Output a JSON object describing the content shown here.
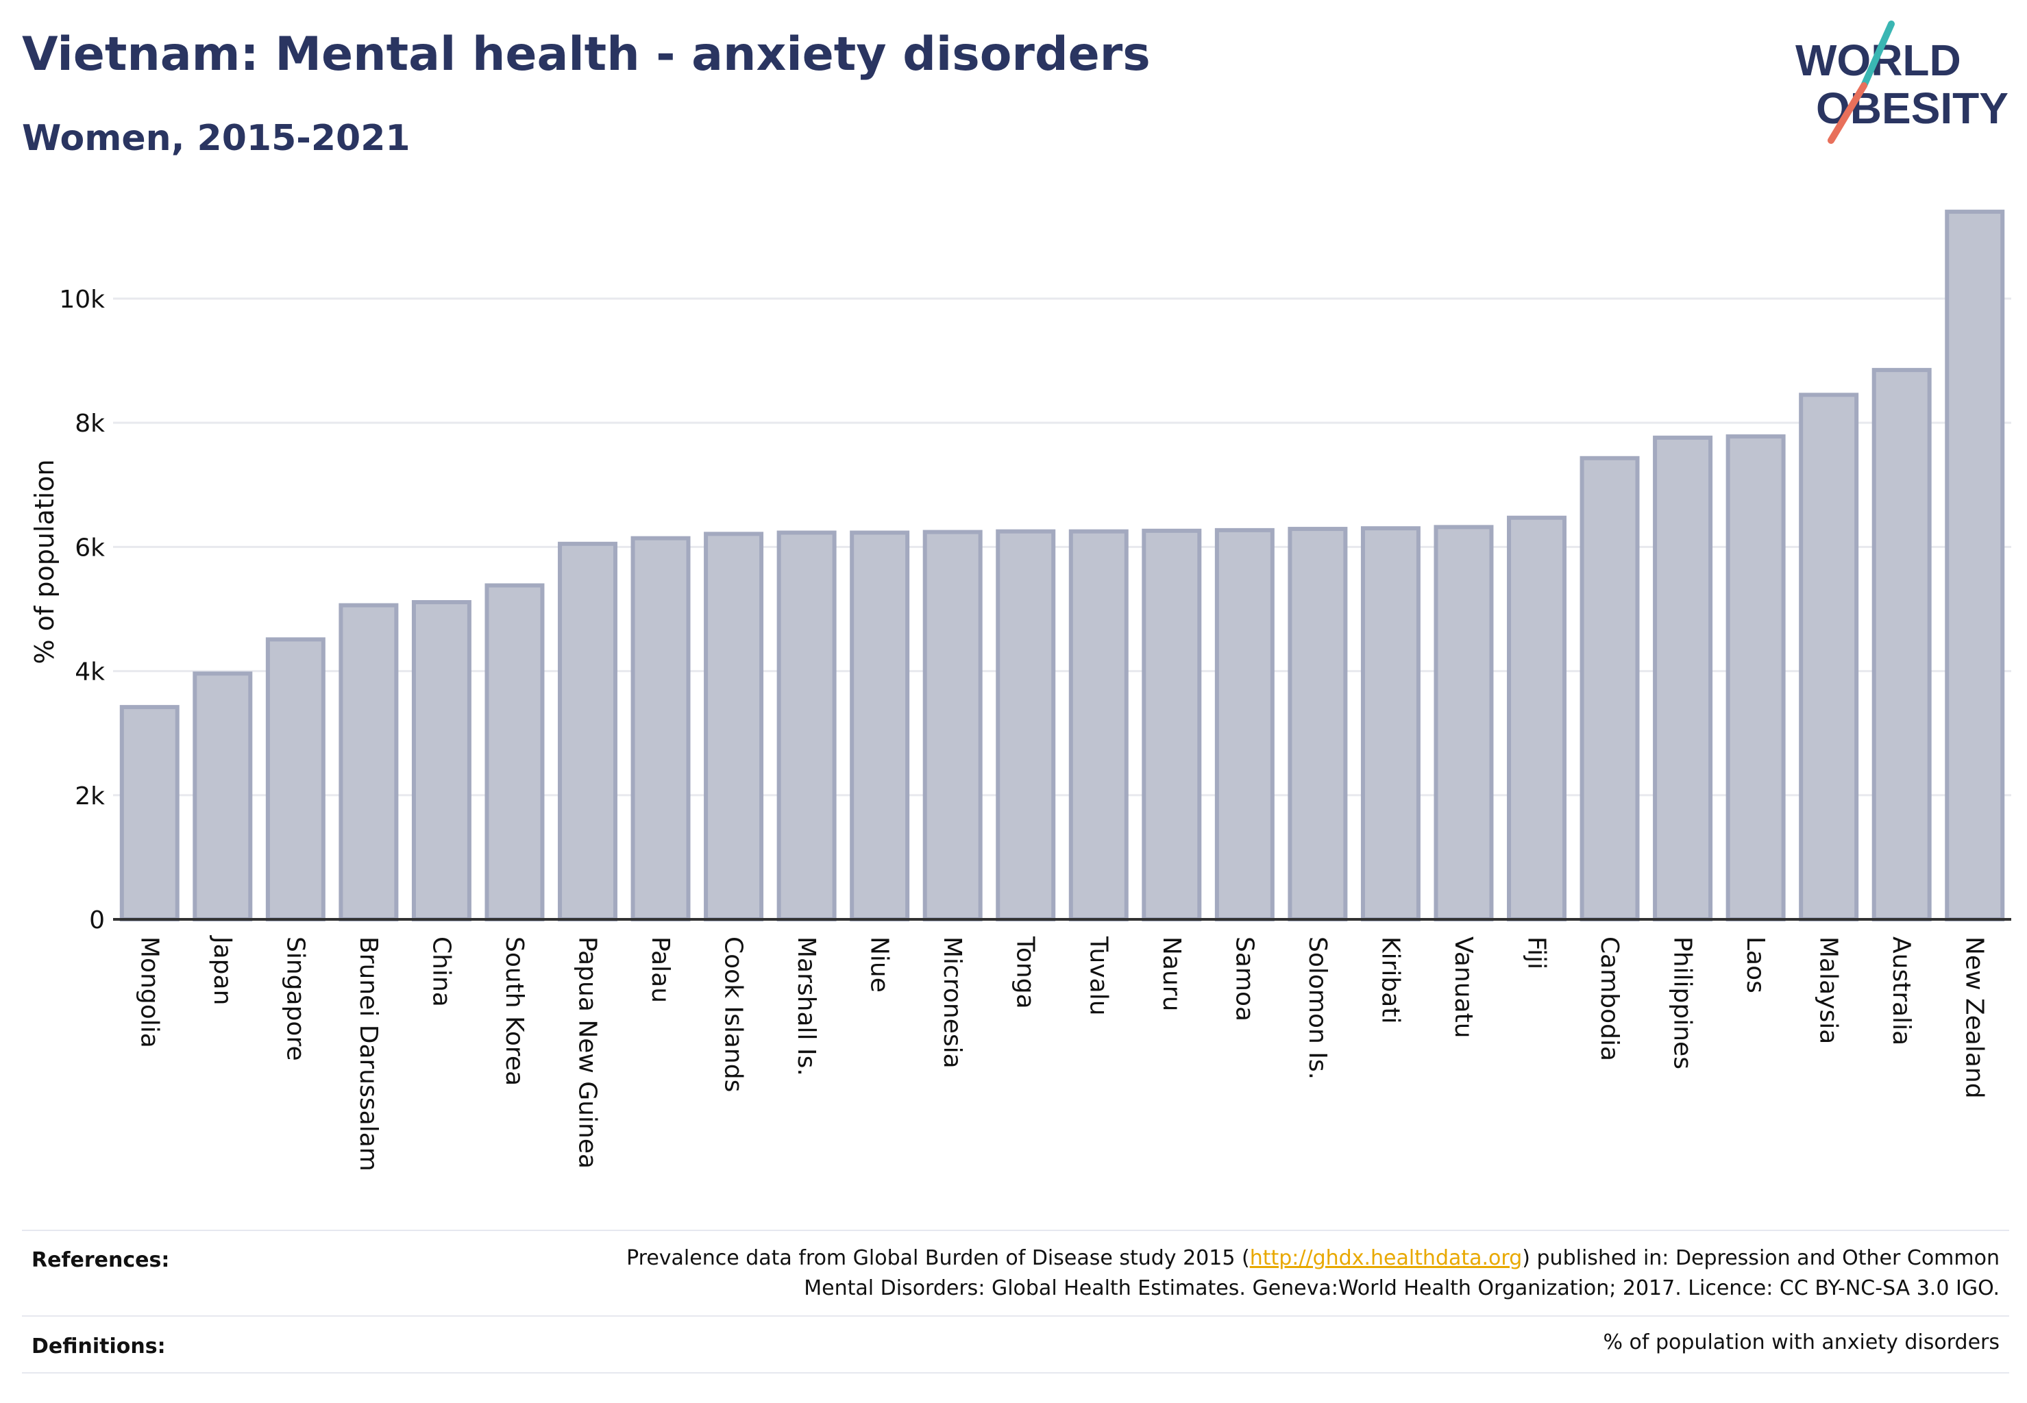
{
  "header": {
    "title": "Vietnam: Mental health - anxiety disorders",
    "subtitle": "Women, 2015-2021"
  },
  "logo": {
    "line1": "WORLD",
    "line2": "OBESITY",
    "colors": {
      "text": "#2a3561",
      "slash_teal": "#3ab6b3",
      "slash_coral": "#e8705b"
    }
  },
  "chart_data": {
    "type": "bar",
    "title": "Vietnam: Mental health - anxiety disorders",
    "subtitle": "Women, 2015-2021",
    "ylabel": "% of population",
    "xlabel": "",
    "ylim": [
      0,
      11500
    ],
    "yticks": [
      0,
      2000,
      4000,
      6000,
      8000,
      10000
    ],
    "ytick_labels": [
      "0",
      "2k",
      "4k",
      "6k",
      "8k",
      "10k"
    ],
    "grid": true,
    "categories": [
      "Mongolia",
      "Japan",
      "Singapore",
      "Brunei Darussalam",
      "China",
      "South Korea",
      "Papua New Guinea",
      "Palau",
      "Cook Islands",
      "Marshall Is.",
      "Niue",
      "Micronesia",
      "Tonga",
      "Tuvalu",
      "Nauru",
      "Samoa",
      "Solomon Is.",
      "Kiribati",
      "Vanuatu",
      "Fiji",
      "Cambodia",
      "Philippines",
      "Laos",
      "Malaysia",
      "Australia",
      "New Zealand"
    ],
    "values": [
      3420,
      3960,
      4510,
      5060,
      5110,
      5380,
      6050,
      6140,
      6210,
      6230,
      6230,
      6240,
      6250,
      6250,
      6260,
      6270,
      6290,
      6300,
      6320,
      6470,
      7430,
      7760,
      7780,
      8450,
      8850,
      11400
    ],
    "colors": {
      "bar_fill": "#bfc3d0",
      "bar_stroke": "#a3a9bf",
      "axis": "#333333",
      "grid": "#e8e9ee"
    }
  },
  "footer": {
    "references_label": "References:",
    "references_line1_pre": "Prevalence data from Global Burden of Disease study 2015 (",
    "references_link": "http://ghdx.healthdata.org",
    "references_line1_post": ") published in: Depression and Other Common",
    "references_line2": "Mental Disorders: Global Health Estimates. Geneva:World Health Organization; 2017. Licence: CC BY-NC-SA 3.0 IGO.",
    "definitions_label": "Definitions:",
    "definitions_text": "% of population with anxiety disorders"
  }
}
